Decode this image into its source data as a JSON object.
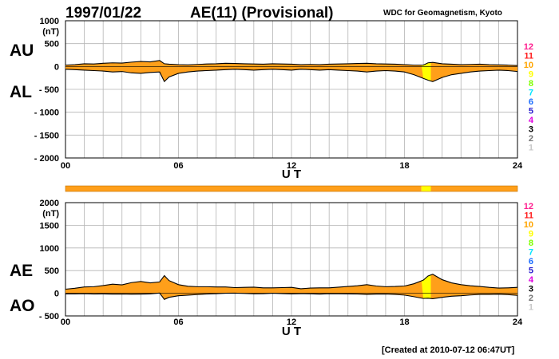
{
  "header": {
    "date": "1997/01/22",
    "title": "AE(11) (Provisional)",
    "source": "WDC for Geomagnetism, Kyoto"
  },
  "footer": {
    "created": "[Created at 2010-07-12 06:47UT]"
  },
  "colors": {
    "fill": "#ff9f1a",
    "highlight": "#ffff00",
    "grid": "#b4b4b4",
    "line": "#000000",
    "bar": "#ff9f1a"
  },
  "quality_scale": [
    {
      "label": "12",
      "color": "#ff1f8f"
    },
    {
      "label": "11",
      "color": "#ff1f1f"
    },
    {
      "label": "10",
      "color": "#ffa500"
    },
    {
      "label": "9",
      "color": "#ffff00"
    },
    {
      "label": "8",
      "color": "#7fff00"
    },
    {
      "label": "7",
      "color": "#00e5ff"
    },
    {
      "label": "6",
      "color": "#1e6fff"
    },
    {
      "label": "5",
      "color": "#2a1fcf"
    },
    {
      "label": "4",
      "color": "#e000e0"
    },
    {
      "label": "3",
      "color": "#000000"
    },
    {
      "label": "2",
      "color": "#777777"
    },
    {
      "label": "1",
      "color": "#c8c8c8"
    }
  ],
  "quality_bar": {
    "segments": [
      {
        "start": 0,
        "end": 18.9,
        "level": "10"
      },
      {
        "start": 18.9,
        "end": 19.4,
        "level": "9"
      },
      {
        "start": 19.4,
        "end": 24,
        "level": "10"
      }
    ]
  },
  "chart_data": [
    {
      "type": "area",
      "panel": "AU/AL",
      "left_labels": [
        "AU",
        "AL"
      ],
      "unit": "(nT)",
      "xlabel": "U T",
      "xlim": [
        0,
        24
      ],
      "ylim": [
        -2000,
        1000
      ],
      "x_ticks": [
        "00",
        "06",
        "12",
        "18",
        "24"
      ],
      "y_ticks": [
        1000,
        500,
        0,
        -500,
        -1000,
        -1500,
        -2000
      ],
      "y_tick_labels": [
        "1000",
        "500",
        "0",
        "- 500",
        "- 1000",
        "- 1500",
        "- 2000"
      ],
      "x": [
        0,
        0.5,
        1,
        1.5,
        2,
        2.5,
        3,
        3.5,
        4,
        4.5,
        5,
        5.25,
        5.5,
        6,
        6.5,
        7,
        7.5,
        8,
        8.5,
        9,
        9.5,
        10,
        10.5,
        11,
        11.5,
        12,
        12.5,
        13,
        13.5,
        14,
        14.5,
        15,
        15.5,
        16,
        16.5,
        17,
        17.5,
        18,
        18.5,
        19,
        19.25,
        19.5,
        20,
        20.5,
        21,
        21.5,
        22,
        22.5,
        23,
        23.5,
        24
      ],
      "series": [
        {
          "values": [
            30,
            40,
            60,
            55,
            70,
            80,
            75,
            95,
            110,
            100,
            130,
            60,
            50,
            40,
            35,
            45,
            55,
            60,
            70,
            65,
            60,
            55,
            50,
            60,
            55,
            50,
            40,
            45,
            40,
            50,
            55,
            60,
            65,
            70,
            60,
            55,
            50,
            40,
            30,
            30,
            80,
            90,
            60,
            50,
            40,
            45,
            50,
            40,
            35,
            30,
            20
          ]
        },
        {
          "values": [
            -60,
            -70,
            -80,
            -90,
            -100,
            -120,
            -110,
            -140,
            -150,
            -130,
            -120,
            -330,
            -230,
            -150,
            -120,
            -100,
            -90,
            -80,
            -70,
            -60,
            -70,
            -80,
            -70,
            -60,
            -70,
            -80,
            -60,
            -70,
            -80,
            -70,
            -80,
            -90,
            -100,
            -120,
            -100,
            -90,
            -100,
            -120,
            -180,
            -260,
            -300,
            -330,
            -240,
            -180,
            -150,
            -120,
            -100,
            -90,
            -80,
            -90,
            -110
          ]
        }
      ]
    },
    {
      "type": "area",
      "panel": "AE/AO",
      "left_labels": [
        "AE",
        "AO"
      ],
      "unit": "(nT)",
      "xlabel": "U T",
      "xlim": [
        0,
        24
      ],
      "ylim": [
        -500,
        2000
      ],
      "x_ticks": [
        "00",
        "06",
        "12",
        "18",
        "24"
      ],
      "y_ticks": [
        2000,
        1500,
        1000,
        500,
        0,
        -500
      ],
      "y_tick_labels": [
        "2000",
        "1500",
        "1000",
        "500",
        "0",
        "- 500"
      ],
      "x": [
        0,
        0.5,
        1,
        1.5,
        2,
        2.5,
        3,
        3.5,
        4,
        4.5,
        5,
        5.25,
        5.5,
        6,
        6.5,
        7,
        7.5,
        8,
        8.5,
        9,
        9.5,
        10,
        10.5,
        11,
        11.5,
        12,
        12.5,
        13,
        13.5,
        14,
        14.5,
        15,
        15.5,
        16,
        16.5,
        17,
        17.5,
        18,
        18.5,
        19,
        19.25,
        19.5,
        20,
        20.5,
        21,
        21.5,
        22,
        22.5,
        23,
        23.5,
        24
      ],
      "series": [
        {
          "values": [
            90,
            110,
            140,
            145,
            170,
            200,
            185,
            235,
            260,
            230,
            250,
            390,
            280,
            190,
            155,
            145,
            145,
            140,
            140,
            125,
            130,
            135,
            120,
            120,
            125,
            130,
            100,
            115,
            120,
            120,
            135,
            150,
            165,
            190,
            160,
            145,
            150,
            160,
            210,
            290,
            380,
            420,
            300,
            230,
            190,
            165,
            150,
            130,
            115,
            120,
            130
          ]
        },
        {
          "values": [
            -15,
            -15,
            -10,
            -18,
            -15,
            -20,
            -18,
            -22,
            -20,
            -15,
            5,
            -135,
            -90,
            -55,
            -42,
            -28,
            -18,
            -10,
            0,
            2,
            -5,
            -12,
            -10,
            0,
            -8,
            -15,
            -10,
            -12,
            -20,
            -10,
            -12,
            -15,
            -18,
            -25,
            -20,
            -18,
            -25,
            -40,
            -75,
            -115,
            -110,
            -120,
            -90,
            -65,
            -55,
            -38,
            -25,
            -25,
            -22,
            -30,
            -45
          ]
        }
      ]
    }
  ]
}
